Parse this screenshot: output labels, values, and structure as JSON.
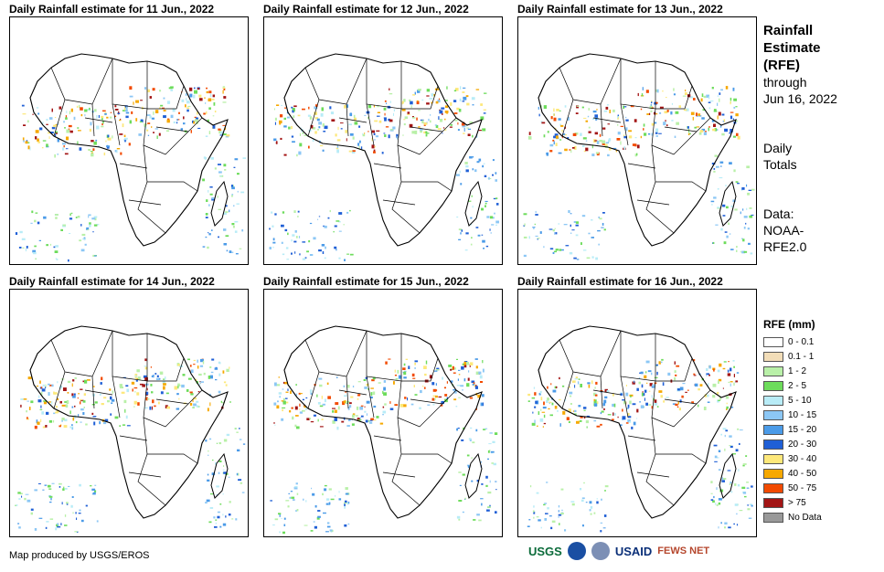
{
  "panels": [
    {
      "title": "Daily Rainfall estimate for 11 Jun., 2022"
    },
    {
      "title": "Daily Rainfall estimate for 12 Jun., 2022"
    },
    {
      "title": "Daily Rainfall estimate for 13 Jun., 2022"
    },
    {
      "title": "Daily Rainfall estimate for 14 Jun., 2022"
    },
    {
      "title": "Daily Rainfall estimate for 15 Jun., 2022"
    },
    {
      "title": "Daily Rainfall estimate for 16 Jun., 2022"
    }
  ],
  "side": {
    "title_line1": "Rainfall",
    "title_line2": "Estimate",
    "title_line3": "(RFE)",
    "through_line1": "through",
    "through_line2": "Jun 16, 2022",
    "totals_line1": "Daily",
    "totals_line2": "Totals",
    "data_line1": "Data:",
    "data_line2": "NOAA-",
    "data_line3": "RFE2.0"
  },
  "legend": {
    "title": "RFE (mm)",
    "items": [
      {
        "label": "0 - 0.1",
        "color": "#ffffff"
      },
      {
        "label": "0.1 - 1",
        "color": "#f2ddb8"
      },
      {
        "label": "1 - 2",
        "color": "#b9f0a8"
      },
      {
        "label": "2 - 5",
        "color": "#6ddc5b"
      },
      {
        "label": "5 - 10",
        "color": "#b8ecf7"
      },
      {
        "label": "10 - 15",
        "color": "#8cc7f5"
      },
      {
        "label": "15 - 20",
        "color": "#4b9be8"
      },
      {
        "label": "20 - 30",
        "color": "#1f5fd6"
      },
      {
        "label": "30 - 40",
        "color": "#fde87a"
      },
      {
        "label": "40 - 50",
        "color": "#f6a800"
      },
      {
        "label": "50 - 75",
        "color": "#f24a00"
      },
      {
        "label": "> 75",
        "color": "#a31515"
      },
      {
        "label": "No Data",
        "color": "#999999"
      }
    ]
  },
  "credit": "Map produced by USGS/EROS",
  "logos": {
    "usgs": "USGS",
    "usaid": "USAID",
    "fewsnet": "FEWS NET"
  }
}
